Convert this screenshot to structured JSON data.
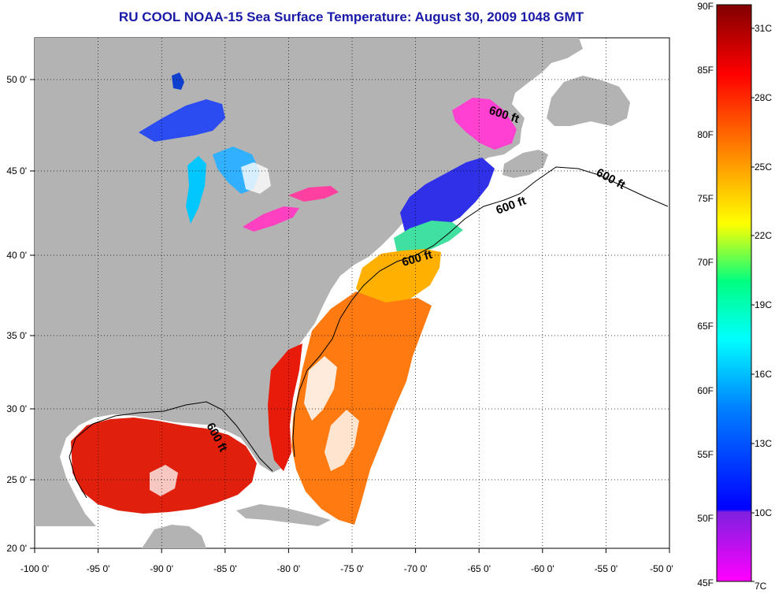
{
  "title": "RU COOL  NOAA-15  Sea Surface Temperature:  August 30, 2009 1048 GMT",
  "axes": {
    "lon_labels": [
      "-100 0'",
      "-95 0'",
      "-90 0'",
      "-85 0'",
      "-80 0'",
      "-75 0'",
      "-70 0'",
      "-65 0'",
      "-60 0'",
      "-55 0'",
      "-50 0'"
    ],
    "lat_labels": [
      "50 0'",
      "45 0'",
      "40 0'",
      "35 0'",
      "30 0'",
      "25 0'",
      "20 0'"
    ]
  },
  "contour_labels": [
    "600 ft",
    "600 ft",
    "600 ft",
    "600 ft",
    "600 ft"
  ],
  "colorbar": {
    "fahrenheit": [
      "90F",
      "85F",
      "80F",
      "75F",
      "70F",
      "65F",
      "60F",
      "55F",
      "50F",
      "45F"
    ],
    "celsius": [
      "31C",
      "28C",
      "25C",
      "22C",
      "19C",
      "16C",
      "13C",
      "10C",
      "7C"
    ],
    "colors": [
      "#ff00ff",
      "#6020d0",
      "#0000ff",
      "#0080ff",
      "#00ffff",
      "#00ff80",
      "#ffff00",
      "#ff8000",
      "#ff0000",
      "#800000"
    ]
  },
  "colors": {
    "land": "#b3b3b3",
    "no_data": "#ffffff",
    "title": "#1a1aa8"
  }
}
